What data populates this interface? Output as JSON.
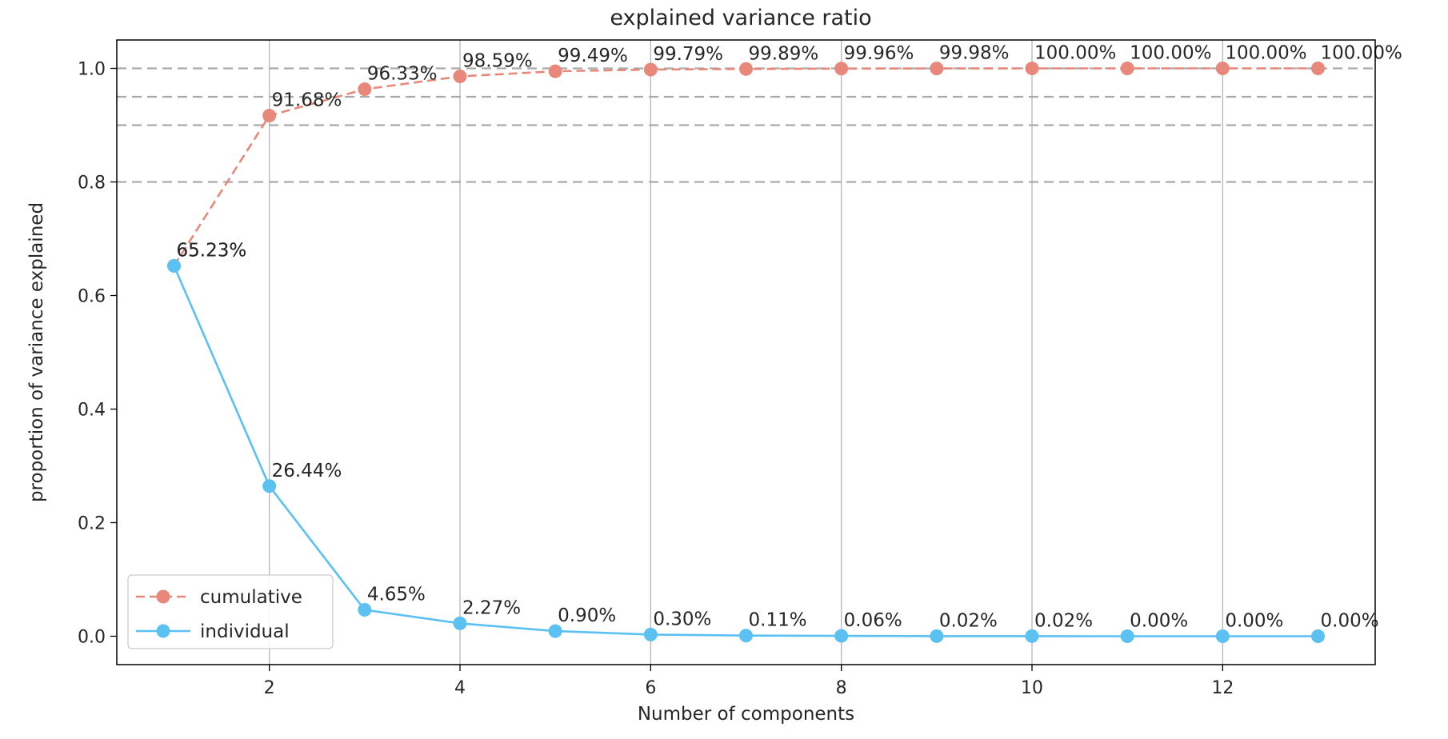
{
  "chart_data": {
    "type": "line",
    "title": "explained variance ratio",
    "xlabel": "Number of components",
    "ylabel": "proportion of variance explained",
    "x": [
      1,
      2,
      3,
      4,
      5,
      6,
      7,
      8,
      9,
      10,
      11,
      12,
      13
    ],
    "xlim": [
      0.4,
      13.6
    ],
    "ylim": [
      -0.05,
      1.05
    ],
    "xticks": [
      2,
      4,
      6,
      8,
      10,
      12
    ],
    "yticks": [
      0.0,
      0.2,
      0.4,
      0.6,
      0.8,
      1.0
    ],
    "ytick_labels": [
      "0.0",
      "0.2",
      "0.4",
      "0.6",
      "0.8",
      "1.0"
    ],
    "grid": "vertical",
    "reference_lines": [
      0.8,
      0.9,
      0.95,
      1.0
    ],
    "legend_placement": "lower-left",
    "series": [
      {
        "name": "cumulative",
        "style": "dashed",
        "color": "#E8887A",
        "values": [
          0.6523,
          0.9168,
          0.9633,
          0.9859,
          0.9949,
          0.9979,
          0.9989,
          0.9996,
          0.9998,
          1.0,
          1.0,
          1.0,
          1.0
        ],
        "labels": [
          "65.23%",
          "91.68%",
          "96.33%",
          "98.59%",
          "99.49%",
          "99.79%",
          "99.89%",
          "99.96%",
          "99.98%",
          "100.00%",
          "100.00%",
          "100.00%",
          "100.00%"
        ]
      },
      {
        "name": "individual",
        "style": "solid",
        "color": "#5BC0F2",
        "values": [
          0.6523,
          0.2644,
          0.0465,
          0.0227,
          0.009,
          0.003,
          0.0011,
          0.0006,
          0.0002,
          0.0002,
          0.0,
          0.0,
          0.0
        ],
        "labels": [
          "65.23%",
          "26.44%",
          "4.65%",
          "2.27%",
          "0.90%",
          "0.30%",
          "0.11%",
          "0.06%",
          "0.02%",
          "0.02%",
          "0.00%",
          "0.00%",
          "0.00%"
        ]
      }
    ]
  },
  "colors": {
    "grid": "#b0b0b0",
    "reference_line": "#aaaaaa",
    "axis": "#000000"
  }
}
